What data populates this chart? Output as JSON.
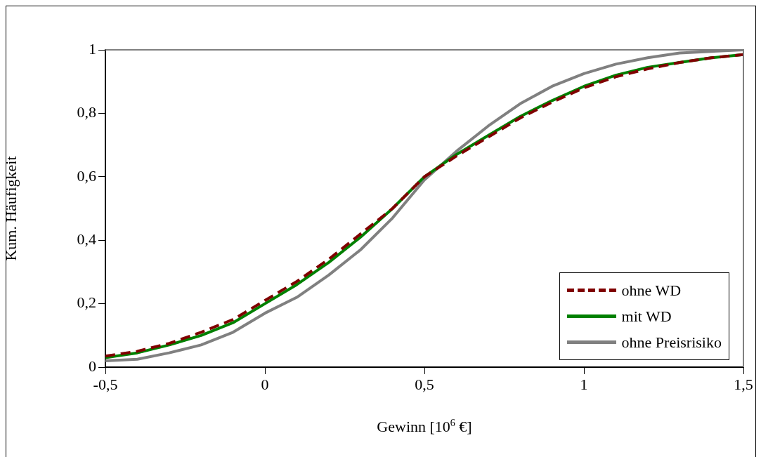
{
  "chart_data": {
    "type": "line",
    "xlabel": "Gewinn [10$^{6}$ €]",
    "ylabel": "Kum. Häufigkeit",
    "x": [
      -0.5,
      -0.4,
      -0.3,
      -0.2,
      -0.1,
      0,
      0.1,
      0.2,
      0.3,
      0.4,
      0.5,
      0.6,
      0.7,
      0.8,
      0.9,
      1.0,
      1.1,
      1.2,
      1.3,
      1.4,
      1.5
    ],
    "series": [
      {
        "name": "ohne WD",
        "color": "#800000",
        "line_style": "dashed",
        "values": [
          0.035,
          0.05,
          0.075,
          0.11,
          0.15,
          0.21,
          0.27,
          0.34,
          0.42,
          0.5,
          0.6,
          0.665,
          0.725,
          0.785,
          0.835,
          0.88,
          0.915,
          0.94,
          0.96,
          0.975,
          0.985
        ]
      },
      {
        "name": "mit WD",
        "color": "#008000",
        "line_style": "solid",
        "values": [
          0.03,
          0.045,
          0.07,
          0.1,
          0.14,
          0.2,
          0.26,
          0.33,
          0.41,
          0.5,
          0.6,
          0.67,
          0.73,
          0.79,
          0.84,
          0.885,
          0.92,
          0.945,
          0.96,
          0.975,
          0.985
        ]
      },
      {
        "name": "ohne Preisrisiko",
        "color": "#808080",
        "line_style": "solid",
        "values": [
          0.02,
          0.025,
          0.045,
          0.07,
          0.11,
          0.17,
          0.22,
          0.29,
          0.37,
          0.47,
          0.59,
          0.68,
          0.76,
          0.83,
          0.885,
          0.925,
          0.955,
          0.975,
          0.99,
          0.995,
          1
        ]
      }
    ],
    "xlim": [
      -0.5,
      1.5
    ],
    "xticks": [
      {
        "value": -0.5,
        "label": "-0,5"
      },
      0,
      {
        "value": 0.5,
        "label": "0,5"
      },
      1,
      {
        "value": 1.5,
        "label": "1,5"
      }
    ],
    "ylim": [
      0,
      1
    ],
    "yticks": [
      0,
      {
        "value": 0.2,
        "label": "0,2"
      },
      {
        "value": 0.4,
        "label": "0,4"
      },
      {
        "value": 0.6,
        "label": "0,6"
      },
      {
        "value": 0.8,
        "label": "0,8"
      },
      1
    ],
    "grid": false,
    "legend": "bottom right",
    "marker": "none"
  }
}
